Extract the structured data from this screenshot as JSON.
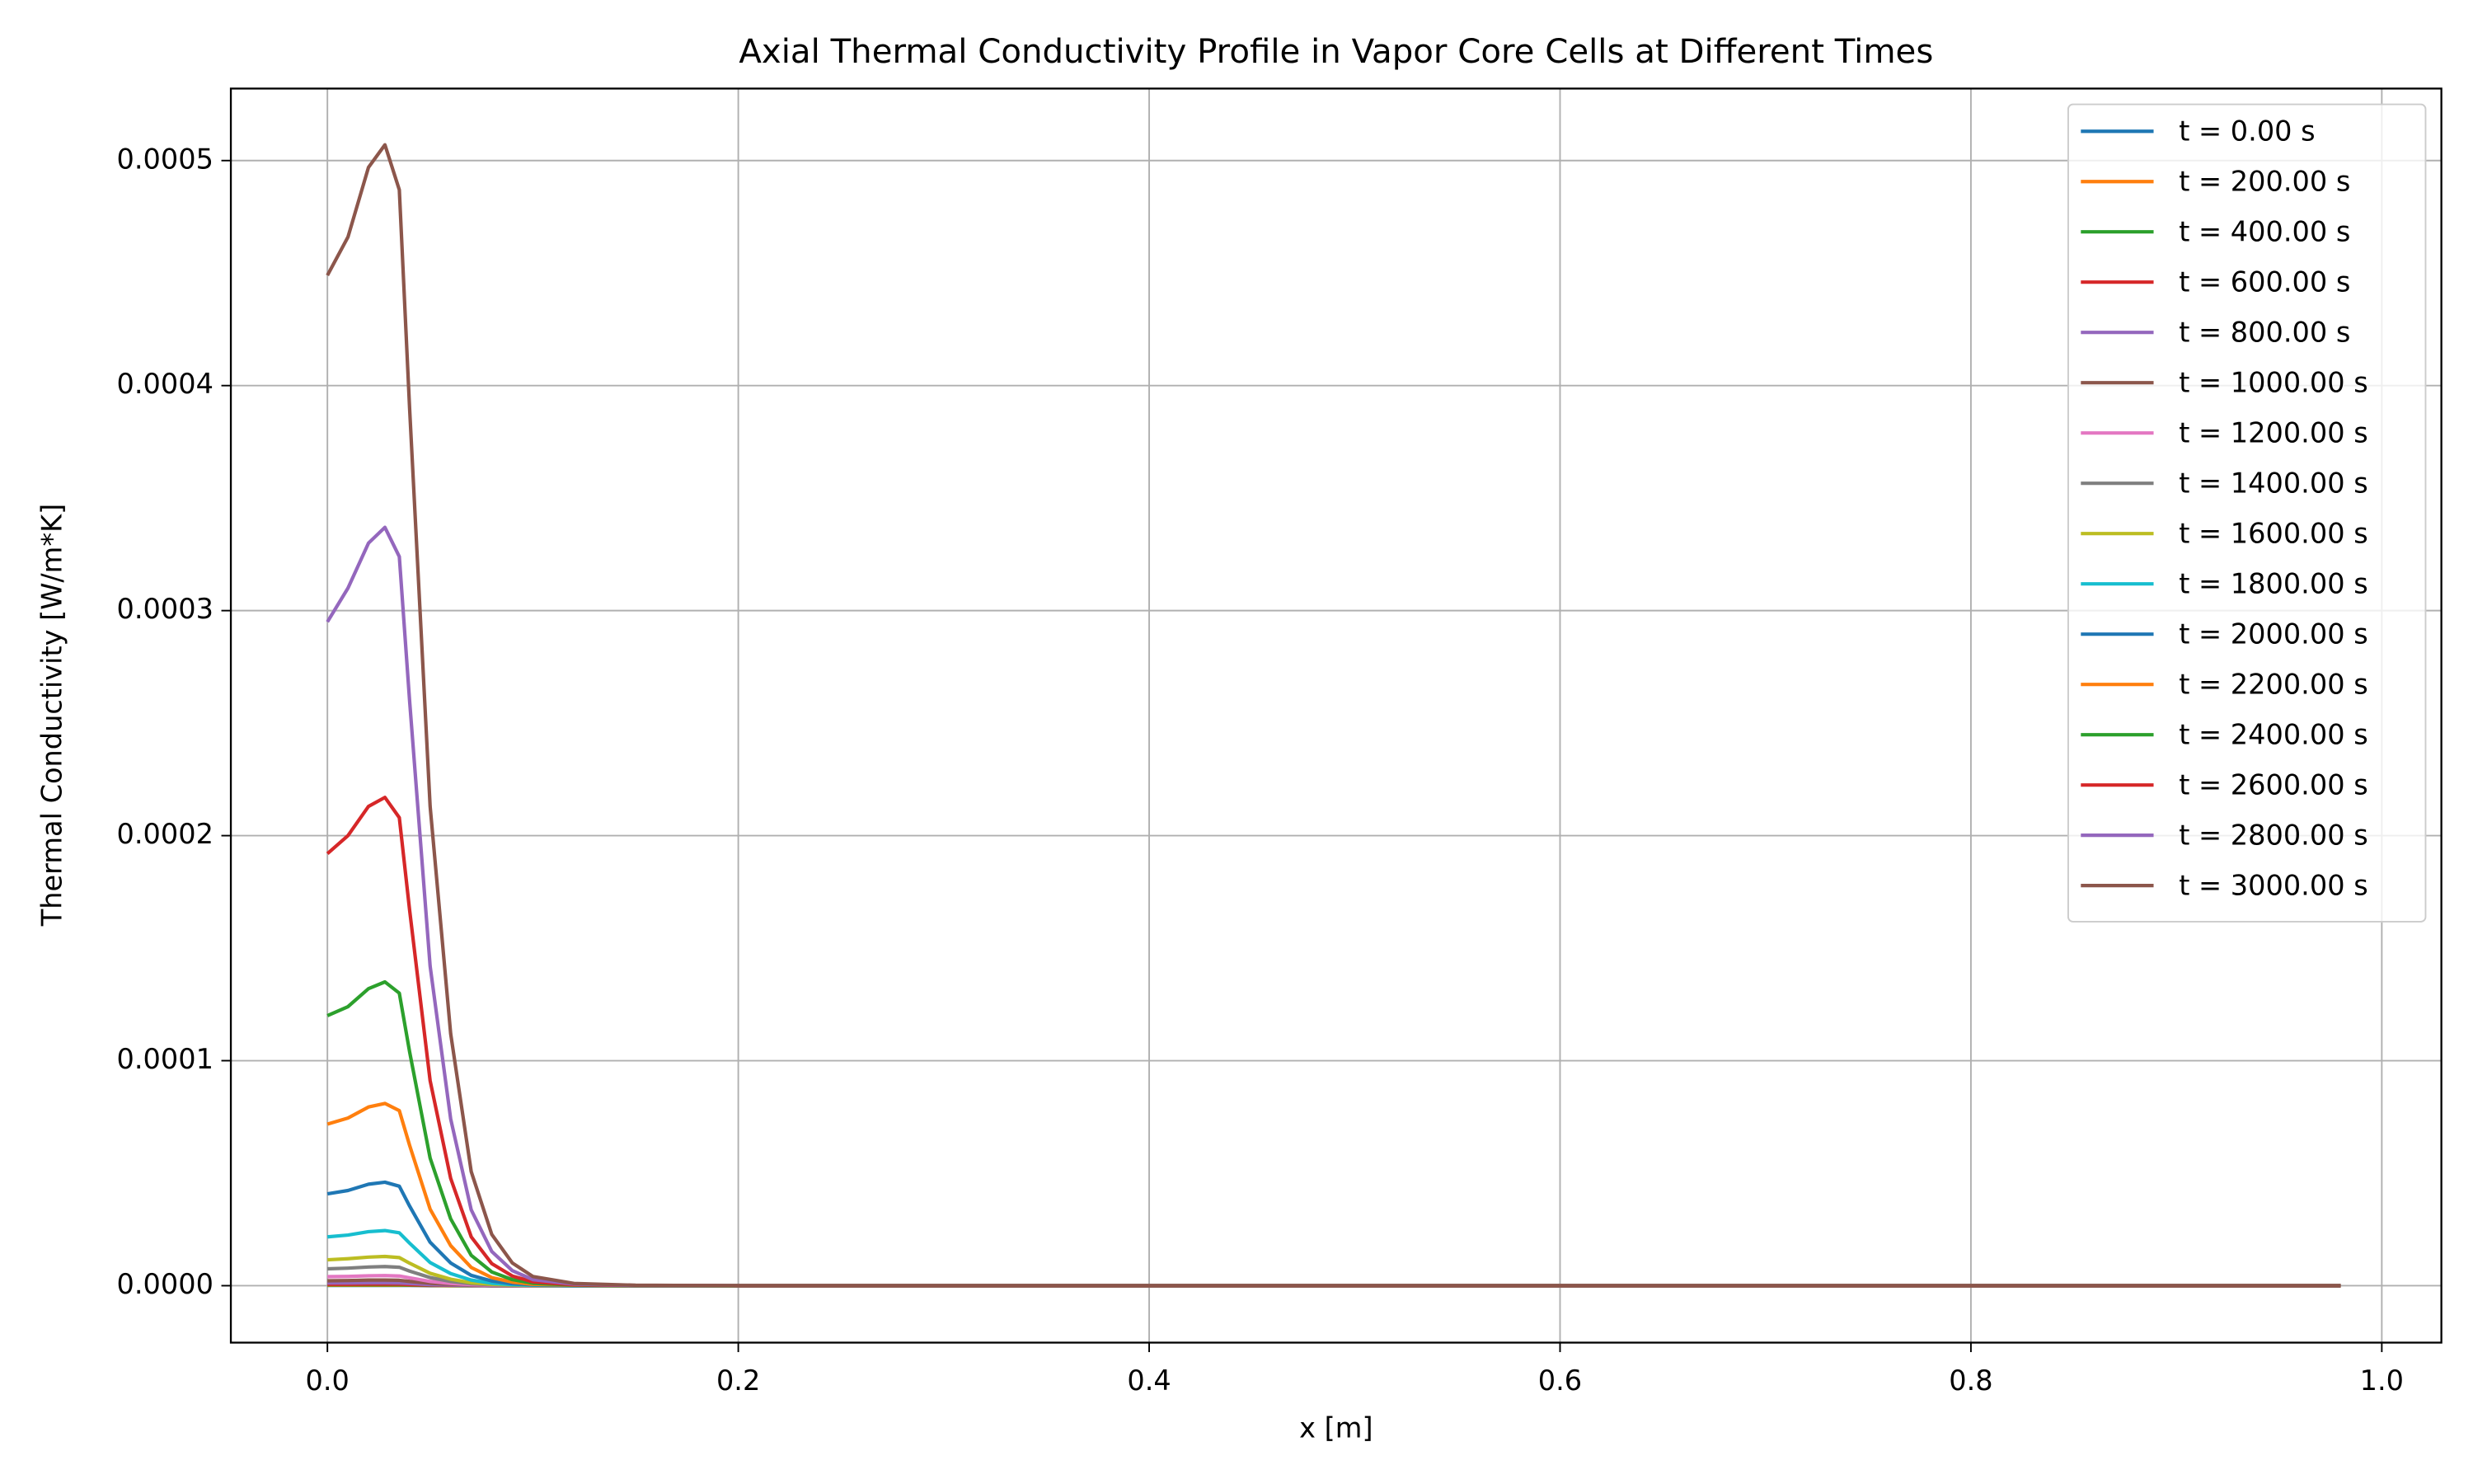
{
  "chart_data": {
    "type": "line",
    "title": "Axial Thermal Conductivity Profile in Vapor Core Cells at Different Times",
    "xlabel": "x [m]",
    "ylabel": "Thermal Conductivity [W/m*K]",
    "x": [
      0,
      0.01,
      0.02,
      0.028,
      0.035,
      0.04,
      0.05,
      0.06,
      0.07,
      0.08,
      0.09,
      0.1,
      0.12,
      0.15,
      0.2,
      0.4,
      0.6,
      0.8,
      0.98
    ],
    "xlim": [
      -0.047,
      1.029
    ],
    "xticks": [
      {
        "value": 0,
        "label": "0.0"
      },
      0.2,
      0.4,
      0.6,
      0.8,
      {
        "value": 1,
        "label": "1.0"
      }
    ],
    "ylim": [
      -2.53e-05,
      0.000532
    ],
    "yticks": [
      {
        "value": 0,
        "label": "0.0000"
      },
      {
        "value": 0.0001,
        "label": "0.0001"
      },
      {
        "value": 0.0002,
        "label": "0.0002"
      },
      {
        "value": 0.0003,
        "label": "0.0003"
      },
      {
        "value": 0.0004,
        "label": "0.0004"
      },
      {
        "value": 0.0005,
        "label": "0.0005"
      }
    ],
    "grid": true,
    "legend": "upper right",
    "series": [
      {
        "name": "t = 0.00 s",
        "color": "#1f77b4",
        "values": [
          1e-07,
          1e-07,
          1e-07,
          1e-07,
          1e-07,
          1e-07,
          0,
          0,
          0,
          0,
          0,
          0,
          0,
          0,
          0,
          0,
          0,
          0,
          0
        ]
      },
      {
        "name": "t = 200.00 s",
        "color": "#ff7f0e",
        "values": [
          2e-07,
          2e-07,
          2e-07,
          2e-07,
          2e-07,
          2e-07,
          1e-07,
          0,
          0,
          0,
          0,
          0,
          0,
          0,
          0,
          0,
          0,
          0,
          0
        ]
      },
      {
        "name": "t = 400.00 s",
        "color": "#2ca02c",
        "values": [
          4e-07,
          4e-07,
          4e-07,
          4e-07,
          4e-07,
          3e-07,
          2e-07,
          1e-07,
          0,
          0,
          0,
          0,
          0,
          0,
          0,
          0,
          0,
          0,
          0
        ]
      },
      {
        "name": "t = 600.00 s",
        "color": "#d62728",
        "values": [
          6e-07,
          6e-07,
          7e-07,
          7e-07,
          7e-07,
          5e-07,
          3e-07,
          2e-07,
          1e-07,
          0,
          0,
          0,
          0,
          0,
          0,
          0,
          0,
          0,
          0
        ]
      },
      {
        "name": "t = 800.00 s",
        "color": "#9467bd",
        "values": [
          1.2e-06,
          1.2e-06,
          1.3e-06,
          1.3e-06,
          1.2e-06,
          1e-06,
          5e-07,
          3e-07,
          1e-07,
          0,
          0,
          0,
          0,
          0,
          0,
          0,
          0,
          0,
          0
        ]
      },
      {
        "name": "t = 1000.00 s",
        "color": "#8c564b",
        "values": [
          2.2e-06,
          2.3e-06,
          2.5e-06,
          2.5e-06,
          2.4e-06,
          1.9e-06,
          1.1e-06,
          6e-07,
          3e-07,
          1e-07,
          0,
          0,
          0,
          0,
          0,
          0,
          0,
          0,
          0
        ]
      },
      {
        "name": "t = 1200.00 s",
        "color": "#e377c2",
        "values": [
          4e-06,
          4.1e-06,
          4.4e-06,
          4.5e-06,
          4.3e-06,
          3.5e-06,
          1.9e-06,
          1e-06,
          5e-07,
          2e-07,
          1e-07,
          0,
          0,
          0,
          0,
          0,
          0,
          0,
          0
        ]
      },
      {
        "name": "t = 1400.00 s",
        "color": "#7f7f7f",
        "values": [
          7.5e-06,
          7.8e-06,
          8.3e-06,
          8.5e-06,
          8.2e-06,
          6.5e-06,
          3.6e-06,
          1.9e-06,
          9e-07,
          4e-07,
          2e-07,
          1e-07,
          0,
          0,
          0,
          0,
          0,
          0,
          0
        ]
      },
      {
        "name": "t = 1600.00 s",
        "color": "#bcbd22",
        "values": [
          1.15e-05,
          1.2e-05,
          1.27e-05,
          1.3e-05,
          1.25e-05,
          1e-05,
          5.5e-06,
          2.9e-06,
          1.3e-06,
          6e-07,
          3e-07,
          1e-07,
          0,
          0,
          0,
          0,
          0,
          0,
          0
        ]
      },
      {
        "name": "t = 1800.00 s",
        "color": "#17becf",
        "values": [
          2.17e-05,
          2.25e-05,
          2.4e-05,
          2.45e-05,
          2.35e-05,
          1.89e-05,
          1.03e-05,
          5.4e-06,
          2.5e-06,
          1.1e-06,
          5e-07,
          2e-07,
          0,
          0,
          0,
          0,
          0,
          0,
          0
        ]
      },
      {
        "name": "t = 2000.00 s",
        "color": "#1f77b4",
        "values": [
          4.08e-05,
          4.23e-05,
          4.51e-05,
          4.6e-05,
          4.42e-05,
          3.54e-05,
          1.93e-05,
          1.01e-05,
          4.6e-06,
          2.1e-06,
          9e-07,
          4e-07,
          1e-07,
          0,
          0,
          0,
          0,
          0,
          0
        ]
      },
      {
        "name": "t = 2200.00 s",
        "color": "#ff7f0e",
        "values": [
          7.18e-05,
          7.45e-05,
          7.94e-05,
          8.1e-05,
          7.78e-05,
          6.24e-05,
          3.4e-05,
          1.78e-05,
          8.1e-06,
          3.6e-06,
          1.6e-06,
          6e-07,
          2e-07,
          0,
          0,
          0,
          0,
          0,
          0
        ]
      },
      {
        "name": "t = 2400.00 s",
        "color": "#2ca02c",
        "values": [
          0.00012,
          0.000124,
          0.000132,
          0.000135,
          0.00013,
          0.000104,
          5.67e-05,
          2.97e-05,
          1.35e-05,
          6.1e-06,
          2.7e-06,
          1.1e-06,
          3e-07,
          0,
          0,
          0,
          0,
          0,
          0
        ]
      },
      {
        "name": "t = 2600.00 s",
        "color": "#d62728",
        "values": [
          0.000192,
          0.0002,
          0.000213,
          0.000217,
          0.000208,
          0.000167,
          9.11e-05,
          4.77e-05,
          2.17e-05,
          9.8e-06,
          4.3e-06,
          1.7e-06,
          4e-07,
          1e-07,
          0,
          0,
          0,
          0,
          0
        ]
      },
      {
        "name": "t = 2800.00 s",
        "color": "#9467bd",
        "values": [
          0.000295,
          0.00031,
          0.00033,
          0.000337,
          0.000324,
          0.00026,
          0.000142,
          7.41e-05,
          3.37e-05,
          1.52e-05,
          6.7e-06,
          2.7e-06,
          7e-07,
          1e-07,
          0,
          0,
          0,
          0,
          0
        ]
      },
      {
        "name": "t = 3000.00 s",
        "color": "#8c564b",
        "values": [
          0.000449,
          0.000466,
          0.000497,
          0.000507,
          0.000487,
          0.00039,
          0.000213,
          0.000112,
          5.07e-05,
          2.28e-05,
          1.01e-05,
          4.1e-06,
          1e-06,
          2e-07,
          0,
          0,
          0,
          0,
          0
        ]
      }
    ]
  }
}
